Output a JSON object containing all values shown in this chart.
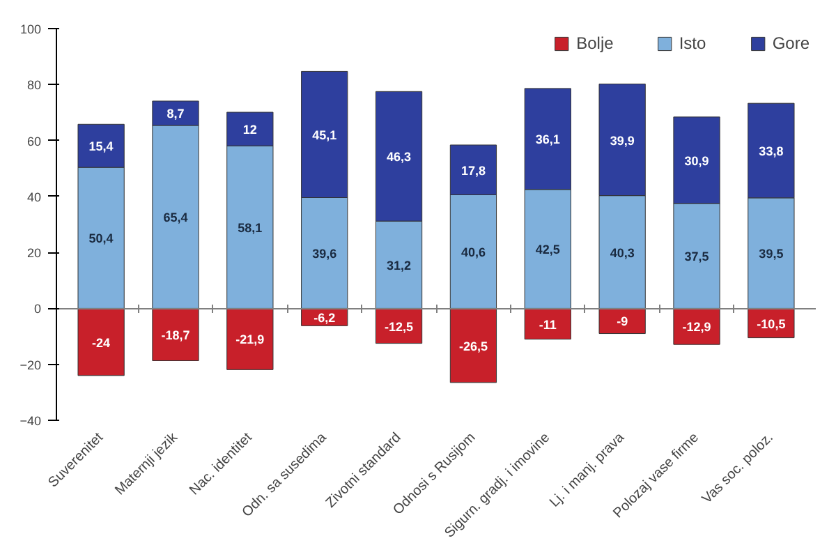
{
  "chart_data": {
    "type": "bar",
    "stacked": true,
    "categories": [
      "Suverenitet",
      "Maternji jezik",
      "Nac. identitet",
      "Odn. sa susedima",
      "Zivotni standard",
      "Odnosi s Rusijom",
      "Sigurn. gradj. i imovine",
      "Lj. i manj. prava",
      "Polozaj vase firme",
      "Vas soc. poloz."
    ],
    "series": [
      {
        "name": "Bolje",
        "color": "#c8202a",
        "values": [
          -24,
          -18.7,
          -21.9,
          -6.2,
          -12.5,
          -26.5,
          -11,
          -9,
          -12.9,
          -10.5
        ],
        "value_labels": [
          "-24",
          "-18,7",
          "-21,9",
          "-6,2",
          "-12,5",
          "-26,5",
          "-11",
          "-9",
          "-12,9",
          "-10,5"
        ]
      },
      {
        "name": "Isto",
        "color": "#7fb0dc",
        "values": [
          50.4,
          65.4,
          58.1,
          39.6,
          31.2,
          40.6,
          42.5,
          40.3,
          37.5,
          39.5
        ],
        "value_labels": [
          "50,4",
          "65,4",
          "58,1",
          "39,6",
          "31,2",
          "40,6",
          "42,5",
          "40,3",
          "37,5",
          "39,5"
        ]
      },
      {
        "name": "Gore",
        "color": "#2e3f9e",
        "values": [
          15.4,
          8.7,
          12,
          45.1,
          46.3,
          17.8,
          36.1,
          39.9,
          30.9,
          33.8
        ],
        "value_labels": [
          "15,4",
          "8,7",
          "12",
          "45,1",
          "46,3",
          "17,8",
          "36,1",
          "39,9",
          "30,9",
          "33,8"
        ]
      }
    ],
    "ylim": [
      -40,
      100
    ],
    "yticks": [
      -40,
      -20,
      0,
      20,
      40,
      60,
      80,
      100
    ],
    "legend": "top right"
  }
}
